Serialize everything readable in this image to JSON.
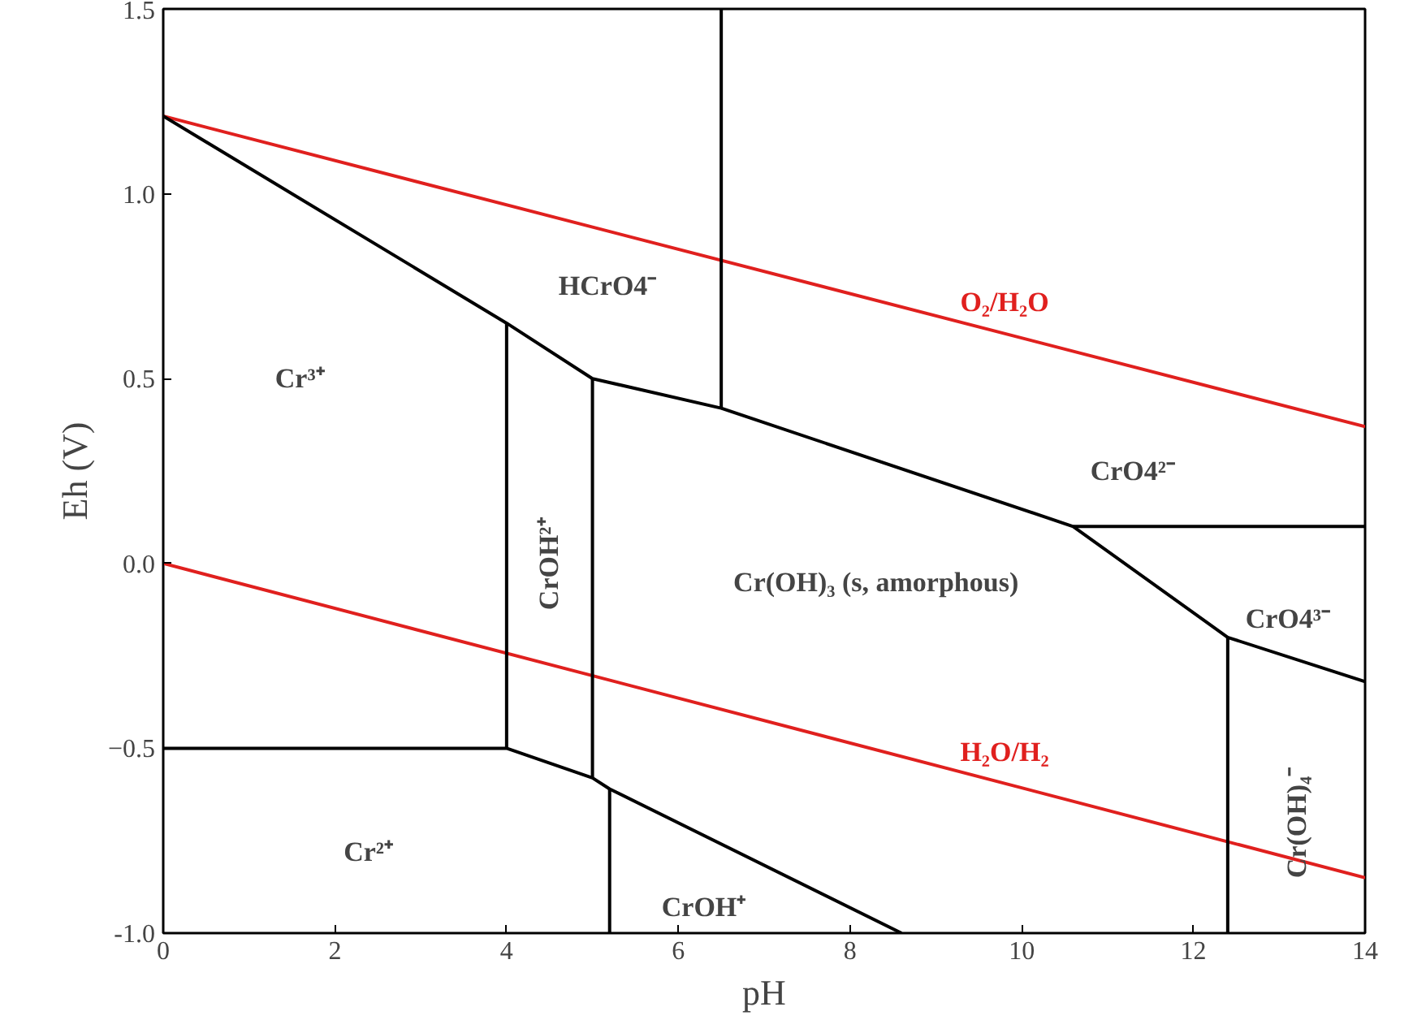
{
  "chart_data": {
    "type": "line",
    "xlabel": "pH",
    "ylabel": "Eh (V)",
    "xlim": [
      0,
      14
    ],
    "ylim": [
      -1.0,
      1.5
    ],
    "xticks": [
      0,
      2,
      4,
      6,
      8,
      10,
      12,
      14
    ],
    "yticks": [
      {
        "value": -1.0,
        "label": "-1.0"
      },
      -0.5,
      {
        "value": 0.0,
        "label": "0.0"
      },
      0.5,
      {
        "value": 1.0,
        "label": "1.0"
      },
      1.5
    ],
    "grid": false,
    "legend": false,
    "marker": "none",
    "line_style": "solid",
    "series": [
      {
        "name": "O₂/H₂O",
        "color": "#e0201e",
        "x": [
          0,
          14
        ],
        "values": [
          1.21,
          0.37
        ]
      },
      {
        "name": "H₂O/H₂",
        "color": "#e0201e",
        "x": [
          0,
          14
        ],
        "values": [
          0.0,
          -0.85
        ]
      },
      {
        "color": "#000000",
        "x": [
          0,
          4,
          5,
          6.5,
          10.6,
          12.4,
          14
        ],
        "values": [
          1.21,
          0.65,
          0.5,
          0.42,
          0.1,
          -0.2,
          -0.32
        ]
      },
      {
        "color": "#000000",
        "x": [
          6.5,
          6.5
        ],
        "values": [
          0.42,
          1.5
        ]
      },
      {
        "color": "#000000",
        "x": [
          10.6,
          14
        ],
        "values": [
          0.1,
          0.1
        ]
      },
      {
        "color": "#000000",
        "x": [
          4,
          4
        ],
        "values": [
          0.65,
          -0.5
        ]
      },
      {
        "color": "#000000",
        "x": [
          5,
          5
        ],
        "values": [
          0.5,
          -0.58
        ]
      },
      {
        "color": "#000000",
        "x": [
          0,
          4,
          5,
          5.2,
          8.6
        ],
        "values": [
          -0.5,
          -0.5,
          -0.58,
          -0.61,
          -1.0
        ]
      },
      {
        "color": "#000000",
        "x": [
          5.2,
          5.2
        ],
        "values": [
          -0.61,
          -1.0
        ]
      },
      {
        "color": "#000000",
        "x": [
          12.4,
          12.4
        ],
        "values": [
          -0.2,
          -1.0
        ]
      }
    ],
    "annotations": [
      "Cr³⁺",
      "HCrO4⁻",
      "CrOH²⁺",
      "Cr(OH)₃ (s, amorphous)",
      "CrO4²⁻",
      "CrO4³⁻",
      "Cr(OH)₄⁻",
      "Cr²⁺",
      "CrOH⁺"
    ]
  }
}
